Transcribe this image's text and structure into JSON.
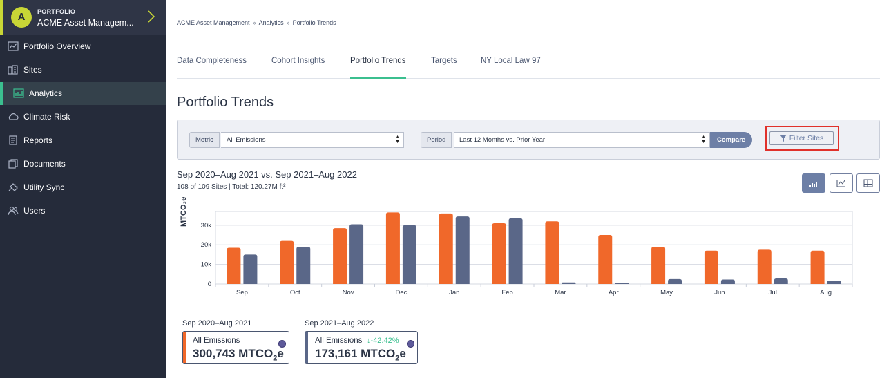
{
  "sidebar": {
    "org_initial": "A",
    "org_kicker": "PORTFOLIO",
    "org_name": "ACME Asset Managem...",
    "items": [
      {
        "label": "Portfolio Overview",
        "icon": "chart-line-icon"
      },
      {
        "label": "Sites",
        "icon": "buildings-icon"
      },
      {
        "label": "Analytics",
        "icon": "analytics-icon",
        "active": true
      },
      {
        "label": "Climate Risk",
        "icon": "cloud-icon"
      },
      {
        "label": "Reports",
        "icon": "report-icon"
      },
      {
        "label": "Documents",
        "icon": "documents-icon"
      },
      {
        "label": "Utility Sync",
        "icon": "plug-icon"
      },
      {
        "label": "Users",
        "icon": "users-icon"
      }
    ]
  },
  "breadcrumb": {
    "items": [
      "ACME Asset Management",
      "Analytics",
      "Portfolio Trends"
    ],
    "separator": "»"
  },
  "tabs": [
    "Data Completeness",
    "Cohort Insights",
    "Portfolio Trends",
    "Targets",
    "NY Local Law 97"
  ],
  "active_tab": "Portfolio Trends",
  "page_title": "Portfolio Trends",
  "filters": {
    "metric_label": "Metric",
    "metric_value": "All Emissions",
    "period_label": "Period",
    "period_value": "Last 12 Months vs. Prior Year",
    "compare_label": "Compare",
    "filter_sites_label": "Filter Sites"
  },
  "summary_header": {
    "title": "Sep 2020–Aug 2021 vs. Sep 2021–Aug 2022",
    "subtitle": "108 of 109 Sites | Total: 120.27M ft²"
  },
  "view_toggle": [
    "bar-chart-icon",
    "line-chart-icon",
    "table-icon"
  ],
  "chart_data": {
    "type": "bar",
    "categories": [
      "Sep",
      "Oct",
      "Nov",
      "Dec",
      "Jan",
      "Feb",
      "Mar",
      "Apr",
      "May",
      "Jun",
      "Jul",
      "Aug"
    ],
    "series": [
      {
        "name": "Sep 2020–Aug 2021",
        "color": "#f0682a",
        "values": [
          18500,
          22000,
          28500,
          36500,
          36000,
          31000,
          32000,
          25000,
          19000,
          17000,
          17500,
          17000
        ]
      },
      {
        "name": "Sep 2021–Aug 2022",
        "color": "#5a6788",
        "values": [
          15000,
          19000,
          30500,
          30000,
          34500,
          33500,
          800,
          700,
          2500,
          2300,
          2800,
          1700
        ]
      }
    ],
    "ylabel": "MTCO₂e",
    "yticks": [
      "0",
      "10k",
      "20k",
      "30k"
    ],
    "ylim": [
      0,
      37000
    ],
    "grid": true
  },
  "cards": [
    {
      "period": "Sep 2020–Aug 2021",
      "name": "All Emissions",
      "value": "300,743 MTCO",
      "unit_sub": "2",
      "unit_tail": "e",
      "color": "#f0682a",
      "change": ""
    },
    {
      "period": "Sep 2021–Aug 2022",
      "name": "All Emissions",
      "value": "173,161 MTCO",
      "unit_sub": "2",
      "unit_tail": "e",
      "color": "#5a6788",
      "change": "↓-42.42%"
    }
  ]
}
